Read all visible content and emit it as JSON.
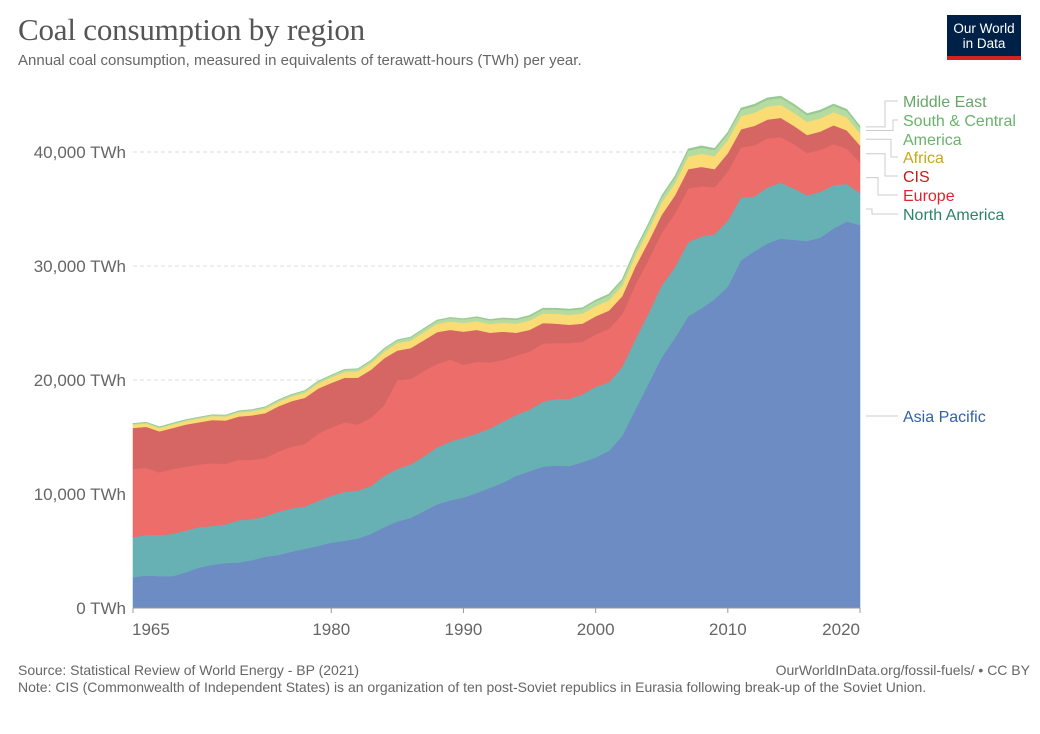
{
  "header": {
    "title": "Coal consumption by region",
    "subtitle": "Annual coal consumption, measured in equivalents of terawatt-hours (TWh) per year.",
    "logo_line1": "Our World",
    "logo_line2": "in Data"
  },
  "footer": {
    "source": "Source: Statistical Review of World Energy - BP (2021)",
    "link": "OurWorldInData.org/fossil-fuels/ • CC BY",
    "note": "Note: CIS (Commonwealth of Independent States) is an organization of ten post-Soviet republics in Eurasia following break-up of the Soviet Union."
  },
  "colors": {
    "background": "#ffffff",
    "title": "#555555",
    "text": "#666666",
    "grid": "#dddddd",
    "logo_bg": "#002147",
    "logo_accent": "#ce261e"
  },
  "chart_data": {
    "type": "area",
    "stacked": true,
    "title": "Coal consumption by region",
    "subtitle": "Annual coal consumption, measured in equivalents of terawatt-hours (TWh) per year.",
    "xlabel": "",
    "ylabel": "",
    "unit": "TWh",
    "xlim": [
      1965,
      2020
    ],
    "ylim": [
      0,
      45000
    ],
    "x_ticks": [
      1965,
      1980,
      1990,
      2000,
      2010,
      2020
    ],
    "y_ticks": [
      {
        "value": 0,
        "label": "0 TWh"
      },
      {
        "value": 10000,
        "label": "10,000 TWh"
      },
      {
        "value": 20000,
        "label": "20,000 TWh"
      },
      {
        "value": 30000,
        "label": "30,000 TWh"
      },
      {
        "value": 40000,
        "label": "40,000 TWh"
      }
    ],
    "grid": "horizontal-dashed",
    "legend": "right-inline",
    "x": [
      1965,
      1966,
      1967,
      1968,
      1969,
      1970,
      1971,
      1972,
      1973,
      1974,
      1975,
      1976,
      1977,
      1978,
      1979,
      1980,
      1981,
      1982,
      1983,
      1984,
      1985,
      1986,
      1987,
      1988,
      1989,
      1990,
      1991,
      1992,
      1993,
      1994,
      1995,
      1996,
      1997,
      1998,
      1999,
      2000,
      2001,
      2002,
      2003,
      2004,
      2005,
      2006,
      2007,
      2008,
      2009,
      2010,
      2011,
      2012,
      2013,
      2014,
      2015,
      2016,
      2017,
      2018,
      2019,
      2020
    ],
    "series": [
      {
        "name": "Asia Pacific",
        "color": "#6d8cc4",
        "label_color": "#3360a9",
        "values": [
          2700,
          2850,
          2800,
          2800,
          3150,
          3550,
          3800,
          3950,
          4000,
          4200,
          4500,
          4650,
          4950,
          5200,
          5450,
          5750,
          5900,
          6100,
          6500,
          7100,
          7600,
          7900,
          8500,
          9100,
          9450,
          9700,
          10100,
          10550,
          11000,
          11600,
          12000,
          12400,
          12500,
          12450,
          12800,
          13200,
          13800,
          15100,
          17400,
          19700,
          22000,
          23700,
          25600,
          26300,
          27100,
          28200,
          30500,
          31300,
          32000,
          32400,
          32300,
          32200,
          32500,
          33300,
          33900,
          33600
        ]
      },
      {
        "name": "North America",
        "color": "#67b1b5",
        "label_color": "#2c8465",
        "values": [
          3500,
          3550,
          3600,
          3700,
          3650,
          3550,
          3400,
          3400,
          3700,
          3600,
          3550,
          3800,
          3800,
          3700,
          3950,
          4100,
          4300,
          4200,
          4200,
          4500,
          4600,
          4700,
          4800,
          5000,
          5150,
          5250,
          5200,
          5200,
          5350,
          5350,
          5400,
          5700,
          5850,
          5900,
          5950,
          6200,
          6000,
          6050,
          6150,
          6150,
          6300,
          6200,
          6500,
          6300,
          5700,
          5800,
          5500,
          4800,
          4900,
          4900,
          4500,
          4000,
          4000,
          3800,
          3300,
          2800
        ]
      },
      {
        "name": "Europe",
        "color": "#ec6d6a",
        "label_color": "#e3222e",
        "values": [
          6000,
          5900,
          5500,
          5700,
          5600,
          5500,
          5500,
          5300,
          5300,
          5200,
          5100,
          5300,
          5400,
          5500,
          5900,
          6000,
          6100,
          5800,
          6000,
          6200,
          7800,
          7500,
          7500,
          7300,
          7200,
          6400,
          6300,
          5800,
          5400,
          5200,
          5100,
          5100,
          4900,
          4900,
          4600,
          4600,
          4700,
          4600,
          4800,
          4700,
          4600,
          4700,
          4700,
          4400,
          4100,
          4300,
          4400,
          4500,
          4300,
          4000,
          3900,
          3700,
          3700,
          3600,
          3100,
          2700
        ]
      },
      {
        "name": "CIS",
        "color": "#d66664",
        "label_color": "#c61a1a",
        "values": [
          3600,
          3600,
          3600,
          3600,
          3700,
          3700,
          3800,
          3800,
          3800,
          3900,
          3950,
          3950,
          4000,
          4050,
          3950,
          3900,
          3900,
          4100,
          4200,
          4100,
          2600,
          2700,
          2700,
          2800,
          2600,
          2900,
          2800,
          2600,
          2500,
          2000,
          1900,
          1800,
          1700,
          1600,
          1600,
          1600,
          1600,
          1600,
          1600,
          1600,
          1600,
          1600,
          1700,
          1700,
          1600,
          1600,
          1600,
          1700,
          1650,
          1700,
          1600,
          1600,
          1600,
          1650,
          1600,
          1500
        ]
      },
      {
        "name": "Africa",
        "color": "#fbdc74",
        "label_color": "#c9a71c",
        "values": [
          290,
          300,
          300,
          310,
          320,
          330,
          340,
          350,
          360,
          370,
          390,
          400,
          420,
          440,
          460,
          480,
          520,
          560,
          580,
          600,
          640,
          660,
          700,
          720,
          740,
          760,
          770,
          770,
          780,
          800,
          820,
          840,
          860,
          870,
          880,
          880,
          900,
          920,
          950,
          1000,
          1050,
          1050,
          1100,
          1150,
          1150,
          1150,
          1150,
          1150,
          1150,
          1150,
          1150,
          1150,
          1150,
          1150,
          1150,
          1050
        ]
      },
      {
        "name": "South & Central America",
        "color": "#b6dba0",
        "label_color": "#6ab26b",
        "values": [
          80,
          80,
          80,
          85,
          90,
          95,
          100,
          110,
          115,
          120,
          130,
          140,
          150,
          160,
          170,
          180,
          190,
          200,
          210,
          230,
          250,
          260,
          270,
          280,
          290,
          300,
          310,
          320,
          330,
          340,
          350,
          360,
          380,
          390,
          400,
          420,
          420,
          430,
          440,
          460,
          480,
          500,
          520,
          540,
          520,
          540,
          560,
          580,
          600,
          600,
          600,
          580,
          580,
          560,
          550,
          480
        ]
      },
      {
        "name": "Middle East",
        "color": "#97c992",
        "label_color": "#6aa56a",
        "values": [
          20,
          20,
          20,
          20,
          20,
          20,
          20,
          20,
          25,
          25,
          25,
          25,
          25,
          25,
          30,
          30,
          30,
          35,
          35,
          40,
          45,
          50,
          55,
          60,
          65,
          70,
          75,
          80,
          85,
          90,
          95,
          100,
          105,
          110,
          115,
          120,
          120,
          125,
          130,
          135,
          140,
          145,
          150,
          150,
          150,
          150,
          150,
          150,
          150,
          150,
          150,
          150,
          150,
          150,
          150,
          150
        ]
      }
    ],
    "legend_labels": [
      {
        "series": "Middle East",
        "lines": [
          "Middle East"
        ]
      },
      {
        "series": "South & Central America",
        "lines": [
          "South & Central",
          "America"
        ]
      },
      {
        "series": "Africa",
        "lines": [
          "Africa"
        ]
      },
      {
        "series": "CIS",
        "lines": [
          "CIS"
        ]
      },
      {
        "series": "Europe",
        "lines": [
          "Europe"
        ]
      },
      {
        "series": "North America",
        "lines": [
          "North America"
        ]
      },
      {
        "series": "Asia Pacific",
        "lines": [
          "Asia Pacific"
        ]
      }
    ]
  }
}
